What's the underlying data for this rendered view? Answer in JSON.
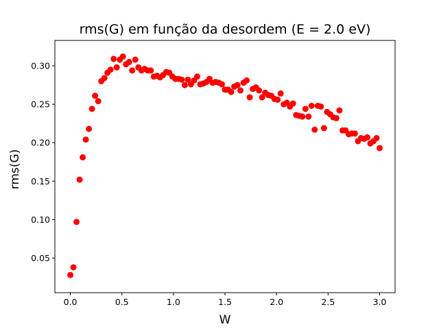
{
  "chart_data": {
    "type": "scatter",
    "title": "rms(G) em função da desordem (E = 2.0 eV)",
    "xlabel": "W",
    "ylabel": "rms(G)",
    "xlim": [
      -0.15,
      3.15
    ],
    "ylim": [
      0.005,
      0.333
    ],
    "xticks": [
      0.0,
      0.5,
      1.0,
      1.5,
      2.0,
      2.5,
      3.0
    ],
    "xtick_labels": [
      "0.0",
      "0.5",
      "1.0",
      "1.5",
      "2.0",
      "2.5",
      "3.0"
    ],
    "yticks": [
      0.05,
      0.1,
      0.15,
      0.2,
      0.25,
      0.3
    ],
    "ytick_labels": [
      "0.05",
      "0.10",
      "0.15",
      "0.20",
      "0.25",
      "0.30"
    ],
    "grid": false,
    "marker_color": "#ff0000",
    "series": [
      {
        "x": [
          0.0,
          0.03,
          0.06,
          0.09,
          0.12,
          0.15,
          0.18,
          0.21,
          0.24,
          0.27,
          0.3,
          0.33,
          0.36,
          0.39,
          0.42,
          0.45,
          0.48,
          0.51,
          0.54,
          0.57,
          0.6,
          0.63,
          0.66,
          0.69,
          0.72,
          0.75,
          0.78,
          0.81,
          0.84,
          0.87,
          0.9,
          0.93,
          0.96,
          0.99,
          1.02,
          1.05,
          1.08,
          1.11,
          1.14,
          1.17,
          1.2,
          1.23,
          1.26,
          1.29,
          1.32,
          1.35,
          1.38,
          1.41,
          1.44,
          1.47,
          1.5,
          1.53,
          1.56,
          1.59,
          1.62,
          1.65,
          1.68,
          1.71,
          1.74,
          1.77,
          1.8,
          1.83,
          1.86,
          1.89,
          1.92,
          1.95,
          1.98,
          2.01,
          2.04,
          2.07,
          2.1,
          2.13,
          2.16,
          2.19,
          2.22,
          2.25,
          2.28,
          2.31,
          2.34,
          2.37,
          2.4,
          2.43,
          2.46,
          2.49,
          2.52,
          2.55,
          2.58,
          2.61,
          2.64,
          2.67,
          2.7,
          2.73,
          2.76,
          2.79,
          2.82,
          2.85,
          2.88,
          2.91,
          2.94,
          2.97,
          3.0
        ],
        "y": [
          0.028,
          0.038,
          0.097,
          0.152,
          0.181,
          0.204,
          0.218,
          0.244,
          0.261,
          0.254,
          0.28,
          0.284,
          0.291,
          0.295,
          0.309,
          0.298,
          0.308,
          0.312,
          0.302,
          0.305,
          0.294,
          0.308,
          0.298,
          0.294,
          0.296,
          0.294,
          0.294,
          0.286,
          0.287,
          0.285,
          0.288,
          0.292,
          0.291,
          0.286,
          0.283,
          0.283,
          0.282,
          0.275,
          0.282,
          0.276,
          0.281,
          0.286,
          0.276,
          0.277,
          0.279,
          0.283,
          0.278,
          0.279,
          0.278,
          0.276,
          0.269,
          0.269,
          0.266,
          0.273,
          0.275,
          0.268,
          0.278,
          0.281,
          0.259,
          0.27,
          0.272,
          0.268,
          0.259,
          0.265,
          0.262,
          0.261,
          0.257,
          0.256,
          0.264,
          0.25,
          0.252,
          0.247,
          0.251,
          0.236,
          0.235,
          0.234,
          0.244,
          0.234,
          0.248,
          0.217,
          0.248,
          0.247,
          0.219,
          0.24,
          0.237,
          0.233,
          0.232,
          0.242,
          0.216,
          0.216,
          0.211,
          0.212,
          0.212,
          0.202,
          0.206,
          0.205,
          0.207,
          0.199,
          0.202,
          0.206,
          0.193
        ]
      }
    ]
  }
}
